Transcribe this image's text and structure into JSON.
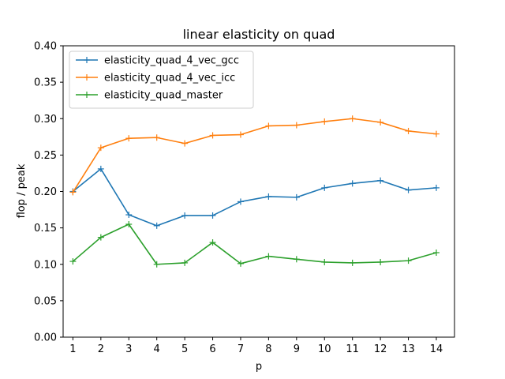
{
  "chart_data": {
    "type": "line",
    "title": "linear elasticity on quad",
    "xlabel": "p",
    "ylabel": "flop / peak",
    "x": [
      1,
      2,
      3,
      4,
      5,
      6,
      7,
      8,
      9,
      10,
      11,
      12,
      13,
      14
    ],
    "xlim": [
      0.65,
      14.65
    ],
    "ylim": [
      0.0,
      0.4
    ],
    "yticks": [
      0.0,
      0.05,
      0.1,
      0.15,
      0.2,
      0.25,
      0.3,
      0.35,
      0.4
    ],
    "ytick_labels": [
      "0.00",
      "0.05",
      "0.10",
      "0.15",
      "0.20",
      "0.25",
      "0.30",
      "0.35",
      "0.40"
    ],
    "xtick_labels": [
      "1",
      "2",
      "3",
      "4",
      "5",
      "6",
      "7",
      "8",
      "9",
      "10",
      "11",
      "12",
      "13",
      "14"
    ],
    "grid": false,
    "legend_position": "upper-left",
    "series": [
      {
        "name": "elasticity_quad_4_vec_gcc",
        "color": "#1f77b4",
        "marker": "plus",
        "values": [
          0.2,
          0.231,
          0.168,
          0.153,
          0.167,
          0.167,
          0.186,
          0.193,
          0.192,
          0.205,
          0.211,
          0.215,
          0.202,
          0.205
        ]
      },
      {
        "name": "elasticity_quad_4_vec_icc",
        "color": "#ff7f0e",
        "marker": "plus",
        "values": [
          0.199,
          0.26,
          0.273,
          0.274,
          0.266,
          0.277,
          0.278,
          0.29,
          0.291,
          0.296,
          0.3,
          0.295,
          0.283,
          0.279
        ]
      },
      {
        "name": "elasticity_quad_master",
        "color": "#2ca02c",
        "marker": "plus",
        "values": [
          0.104,
          0.137,
          0.155,
          0.1,
          0.102,
          0.13,
          0.101,
          0.111,
          0.107,
          0.103,
          0.102,
          0.103,
          0.105,
          0.116
        ]
      }
    ]
  }
}
